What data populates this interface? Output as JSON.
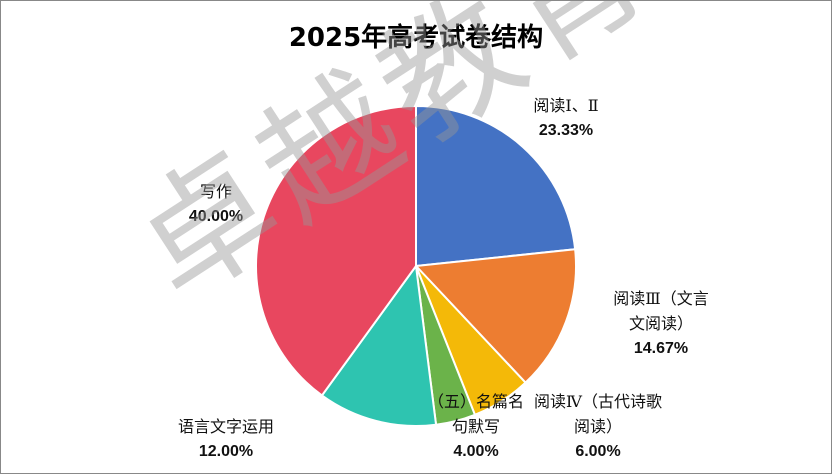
{
  "chart_data": {
    "type": "pie",
    "title": "2025年高考试卷结构",
    "watermark": "卓越教育",
    "categories": [
      "阅读Ⅰ、Ⅱ",
      "阅读Ⅲ（文言文阅读）",
      "阅读Ⅳ（古代诗歌阅读）",
      "（五）名篇名句默写",
      "语言文字运用",
      "写作"
    ],
    "values": [
      23.33,
      14.67,
      6.0,
      4.0,
      12.0,
      40.0
    ],
    "value_labels": [
      "23.33%",
      "14.67%",
      "6.00%",
      "4.00%",
      "12.00%",
      "40.00%"
    ],
    "colors": [
      "#4472c4",
      "#ed7d31",
      "#f4b908",
      "#6bb34a",
      "#2ec4b0",
      "#e8475f"
    ]
  }
}
